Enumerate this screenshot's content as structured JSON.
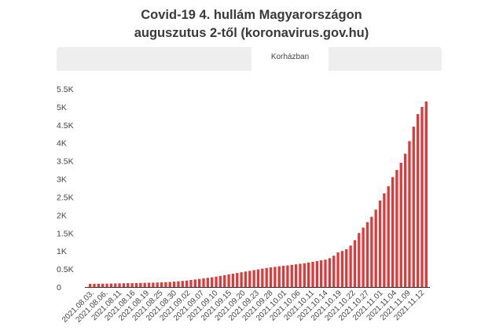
{
  "title": {
    "line1": "Covid-19 4. hullám Magyarországon",
    "line2": "auguszutus 2-től (koronavirus.gov.hu)"
  },
  "tabs": [
    {
      "label": "Korházban",
      "active": true
    }
  ],
  "colors": {
    "bar": "#dd3b3b",
    "tabbar_bg": "#eeeeee",
    "axis": "#333333"
  },
  "chart_data": {
    "type": "bar",
    "title": "Covid-19 4. hullám Magyarországon auguszutus 2-től (koronavirus.gov.hu)",
    "series": [
      {
        "name": "Korházban",
        "values": [
          90,
          90,
          92,
          93,
          95,
          97,
          100,
          102,
          105,
          108,
          110,
          112,
          115,
          118,
          120,
          122,
          125,
          130,
          135,
          140,
          150,
          160,
          170,
          180,
          195,
          210,
          225,
          240,
          255,
          270,
          290,
          310,
          330,
          350,
          370,
          390,
          410,
          430,
          450,
          470,
          490,
          510,
          530,
          545,
          560,
          575,
          590,
          600,
          615,
          630,
          645,
          660,
          680,
          700,
          720,
          740,
          760,
          800,
          870,
          960,
          1000,
          1050,
          1150,
          1300,
          1500,
          1650,
          1800,
          1950,
          2150,
          2400,
          2600,
          2800,
          3050,
          3250,
          3450,
          3700,
          4050,
          4450,
          4800,
          5000,
          5150
        ]
      }
    ],
    "x_tick_labels": [
      "2021.08.03.",
      "2021.08.06.",
      "2021.08.11",
      "2021.08.16",
      "2021.08.19",
      "2021.08.25",
      "2021.08.30",
      "2021.09.02",
      "2021.09.07",
      "2021.09.10",
      "2021.09.15",
      "2021.09.20",
      "2021.09.23",
      "2021.09.28",
      "2021.10.01",
      "2021.10.06",
      "2021.10.11",
      "2021.10.14",
      "2021.10.19",
      "2021.10.22",
      "2021.10.27",
      "2021.11.01",
      "2021.11.04",
      "2021.11.09",
      "2021.11.12"
    ],
    "y_ticks": [
      "0",
      "0.5K",
      "1K",
      "1.5K",
      "2K",
      "2.5K",
      "3K",
      "3.5K",
      "4K",
      "4.5K",
      "5K",
      "5.5K"
    ],
    "ylim": [
      0,
      5500
    ],
    "grid": false,
    "legend": "none"
  }
}
